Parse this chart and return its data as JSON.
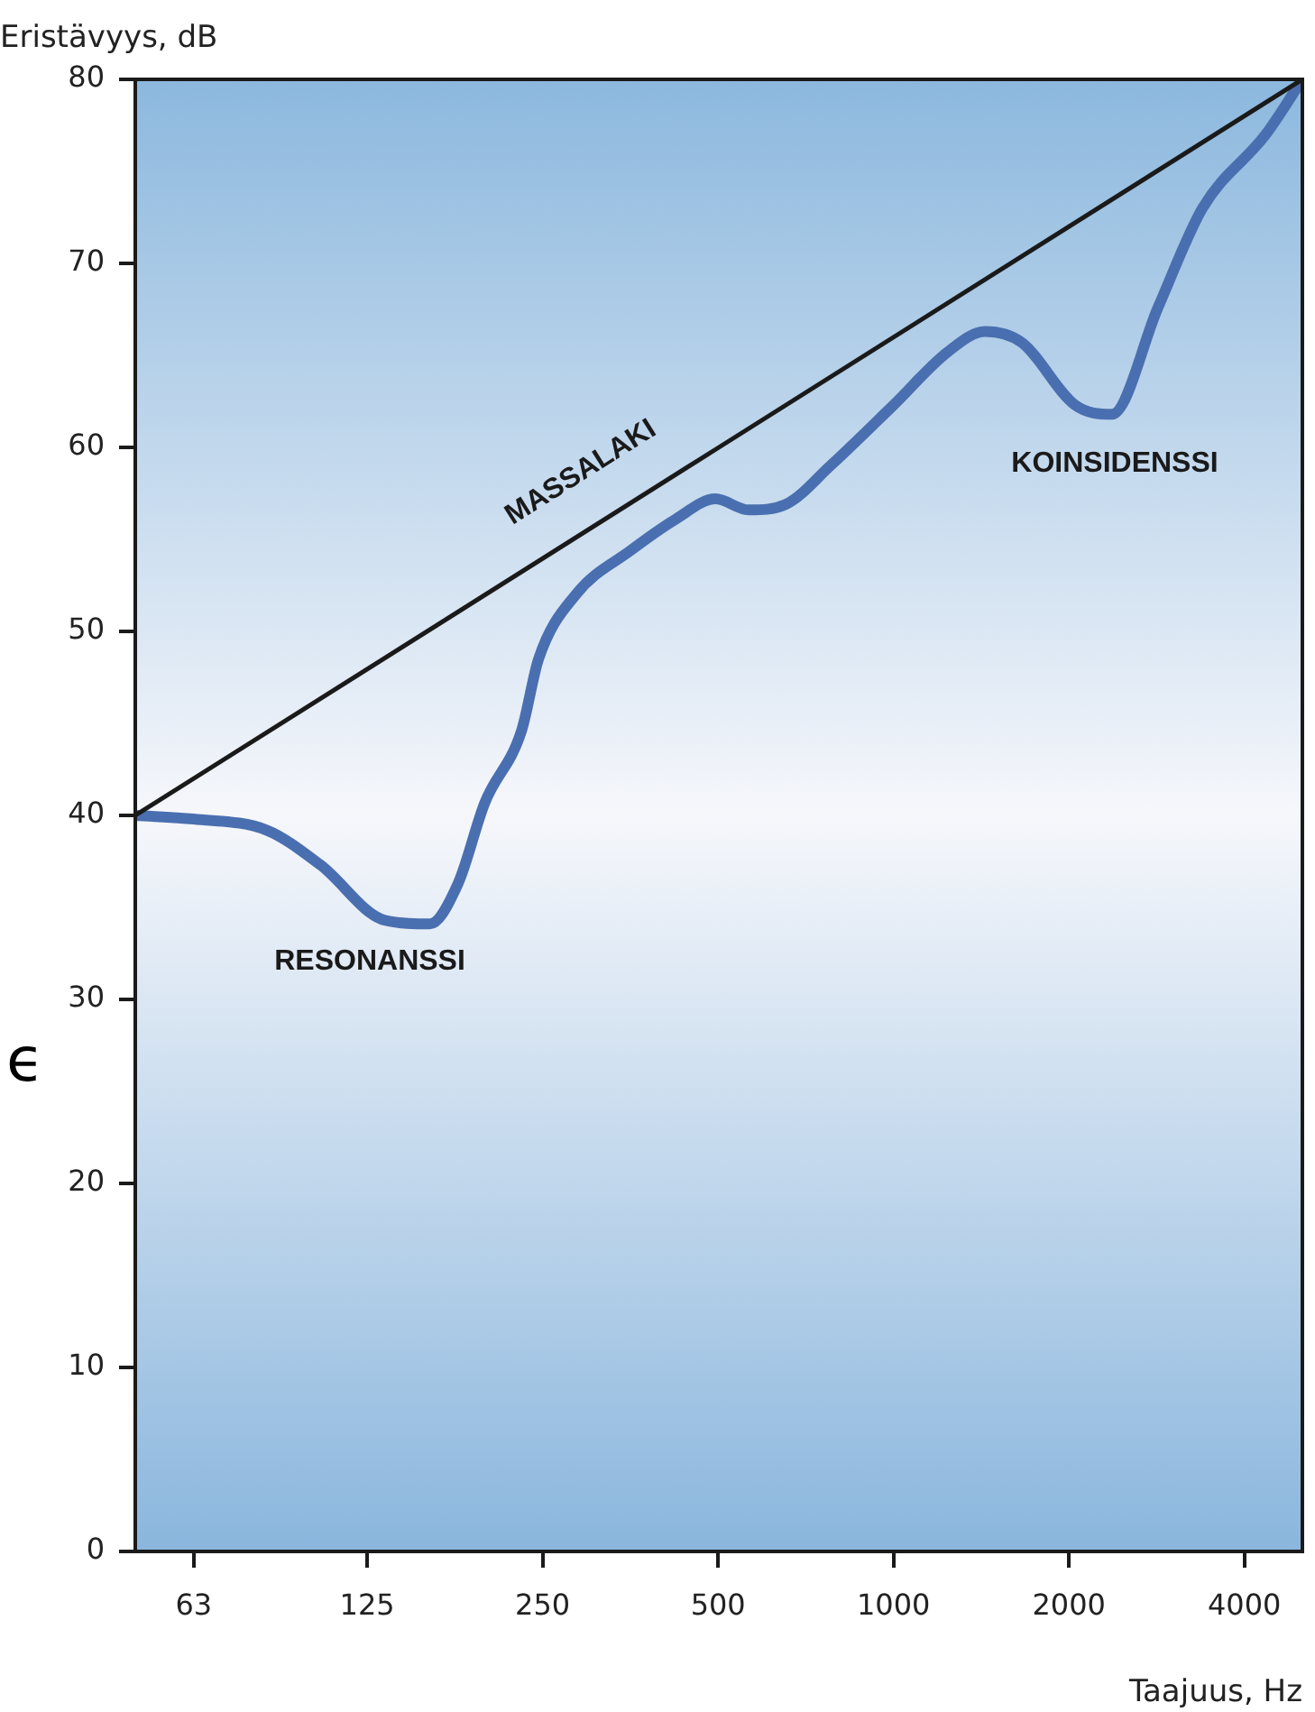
{
  "chart_data": {
    "type": "line",
    "xlabel": "Taajuus, Hz",
    "ylabel": "Eristävyys, dB",
    "log": "x",
    "grid": false,
    "legend": false,
    "marker": "none",
    "line_style": "solid",
    "xlim": [
      50,
      5030
    ],
    "xticks": [
      63,
      125,
      250,
      500,
      1000,
      2000,
      4000
    ],
    "ylim": [
      0,
      80
    ],
    "yticks": [
      0,
      10,
      20,
      30,
      40,
      50,
      60,
      70,
      80
    ],
    "series": [
      {
        "color": "#1a1a1a",
        "x": [
          50,
          5030
        ],
        "values": [
          40,
          80
        ]
      },
      {
        "color": "#4a6fb0",
        "x": [
          50,
          63,
          84,
          104,
          134,
          160,
          179,
          199,
          230,
          246,
          285,
          354,
          423,
          495,
          564,
          653,
          779,
          1000,
          1240,
          1436,
          1660,
          2050,
          2370,
          2843,
          3390,
          4350,
          5030
        ],
        "values": [
          40,
          39.8,
          39.2,
          37.3,
          34.3,
          34.1,
          36.3,
          40.7,
          44.6,
          48.5,
          52,
          54.4,
          56.1,
          57.2,
          56.6,
          56.9,
          59,
          62.3,
          65.2,
          66.3,
          65.7,
          62.3,
          61.8,
          67.6,
          73,
          77,
          80
        ]
      }
    ],
    "annotations": [
      "MASSALAKI",
      "RESONANSSI",
      "KOINSIDENSSI",
      "ϵ"
    ]
  }
}
